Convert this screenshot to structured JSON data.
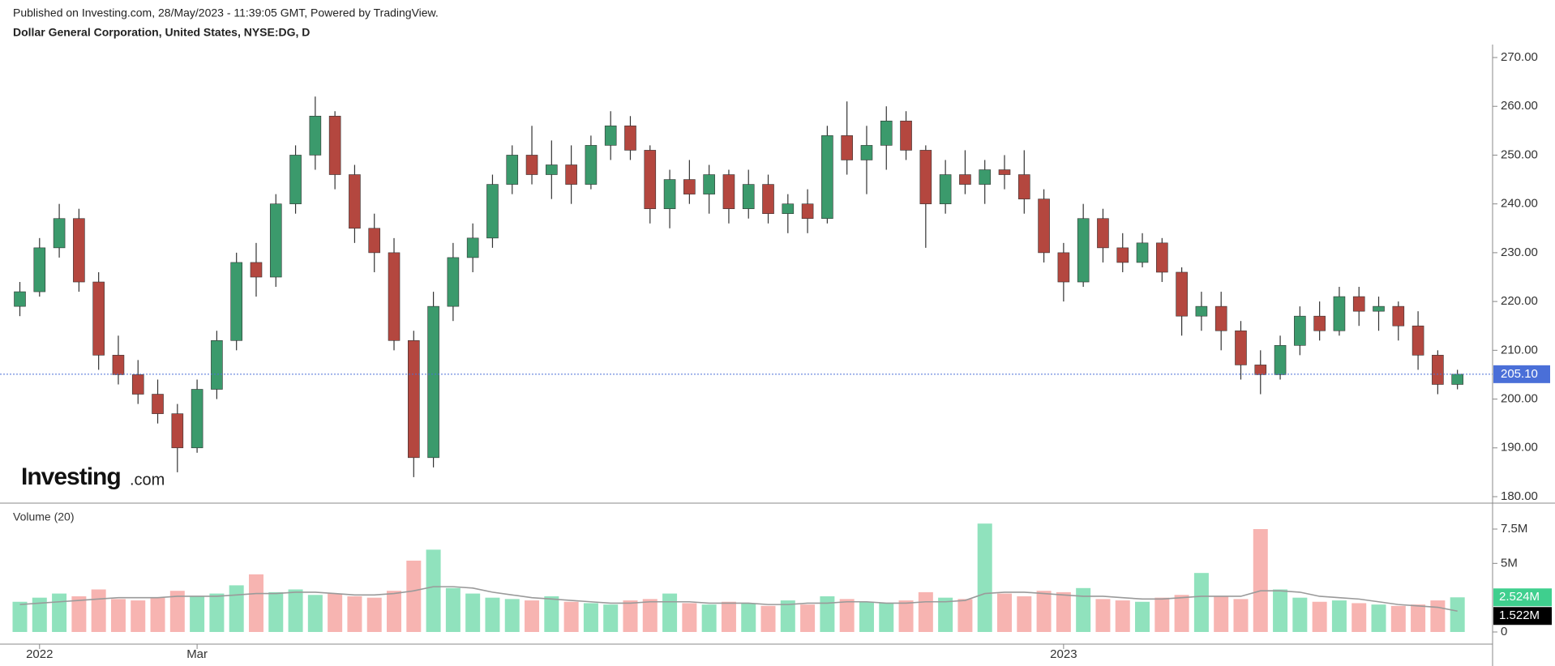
{
  "chart_data": {
    "type": "candlestick",
    "header": "Published on Investing.com, 28/May/2023 - 11:39:05 GMT, Powered by TradingView.",
    "title": "Dollar General Corporation, United States, NYSE:DG, D",
    "volume_title": "Volume (20)",
    "logo": {
      "brand": "Investing",
      "suffix": ".com"
    },
    "up_color": "#3b9a6c",
    "down_color": "#b4473f",
    "volume_up_color": "#90e2bd",
    "volume_down_color": "#f7b4b1",
    "volume_ma_color": "#9a9a9a",
    "categories": [
      null,
      "2022",
      null,
      null,
      null,
      null,
      null,
      null,
      null,
      "Mar",
      null,
      null,
      null,
      null,
      null,
      null,
      null,
      null,
      null,
      null,
      null,
      null,
      null,
      null,
      null,
      null,
      null,
      null,
      null,
      null,
      null,
      null,
      null,
      null,
      null,
      null,
      null,
      null,
      null,
      null,
      null,
      null,
      null,
      null,
      null,
      null,
      null,
      null,
      null,
      null,
      null,
      null,
      null,
      "2023",
      null,
      null,
      null,
      null,
      null,
      null,
      null,
      null,
      null,
      null,
      null,
      null,
      null,
      null,
      null,
      null,
      null,
      null,
      null,
      null
    ],
    "open": [
      219,
      222,
      231,
      237,
      224,
      209,
      205,
      201,
      197,
      190,
      202,
      212,
      228,
      225,
      240,
      250,
      258,
      246,
      235,
      230,
      212,
      188,
      219,
      229,
      233,
      244,
      250,
      246,
      248,
      244,
      252,
      256,
      251,
      239,
      245,
      242,
      246,
      239,
      244,
      238,
      240,
      237,
      254,
      249,
      252,
      257,
      251,
      240,
      246,
      244,
      247,
      246,
      241,
      230,
      224,
      237,
      231,
      228,
      232,
      226,
      217,
      219,
      214,
      207,
      205,
      211,
      217,
      214,
      221,
      218,
      219,
      215,
      209,
      203
    ],
    "high": [
      224,
      233,
      240,
      239,
      226,
      213,
      208,
      204,
      199,
      204,
      214,
      230,
      232,
      242,
      252,
      262,
      259,
      248,
      238,
      233,
      214,
      222,
      232,
      236,
      246,
      252,
      256,
      253,
      252,
      254,
      259,
      258,
      252,
      247,
      249,
      248,
      247,
      247,
      246,
      242,
      243,
      256,
      261,
      256,
      260,
      259,
      252,
      249,
      251,
      249,
      250,
      251,
      243,
      232,
      240,
      239,
      234,
      234,
      233,
      227,
      222,
      222,
      216,
      210,
      213,
      219,
      220,
      223,
      223,
      221,
      220,
      218,
      210,
      206
    ],
    "low": [
      217,
      221,
      229,
      222,
      206,
      203,
      199,
      195,
      185,
      189,
      200,
      210,
      221,
      223,
      238,
      247,
      243,
      232,
      226,
      210,
      184,
      186,
      216,
      226,
      231,
      242,
      244,
      241,
      240,
      243,
      249,
      249,
      236,
      235,
      240,
      238,
      236,
      237,
      236,
      234,
      234,
      236,
      246,
      242,
      247,
      249,
      231,
      238,
      242,
      240,
      243,
      238,
      228,
      220,
      223,
      228,
      226,
      227,
      224,
      213,
      214,
      210,
      204,
      201,
      204,
      209,
      212,
      213,
      215,
      214,
      212,
      206,
      201,
      202
    ],
    "close": [
      222,
      231,
      237,
      224,
      209,
      205,
      201,
      197,
      190,
      202,
      212,
      228,
      225,
      240,
      250,
      258,
      246,
      235,
      230,
      212,
      188,
      219,
      229,
      233,
      244,
      250,
      246,
      248,
      244,
      252,
      256,
      251,
      239,
      245,
      242,
      246,
      239,
      244,
      238,
      240,
      237,
      254,
      249,
      252,
      257,
      251,
      240,
      246,
      244,
      247,
      246,
      241,
      230,
      224,
      237,
      231,
      228,
      232,
      226,
      217,
      219,
      214,
      207,
      205,
      211,
      217,
      214,
      221,
      218,
      219,
      215,
      209,
      203,
      205.1
    ],
    "volume": [
      2.2,
      2.5,
      2.8,
      2.6,
      3.1,
      2.4,
      2.3,
      2.5,
      3.0,
      2.6,
      2.8,
      3.4,
      4.2,
      2.9,
      3.1,
      2.7,
      2.8,
      2.6,
      2.5,
      3.0,
      5.2,
      6.0,
      3.2,
      2.8,
      2.5,
      2.4,
      2.3,
      2.6,
      2.2,
      2.1,
      2.0,
      2.3,
      2.4,
      2.8,
      2.1,
      2.0,
      2.2,
      2.1,
      1.9,
      2.3,
      2.0,
      2.6,
      2.4,
      2.2,
      2.1,
      2.3,
      2.9,
      2.5,
      2.4,
      7.9,
      2.8,
      2.6,
      3.0,
      2.9,
      3.2,
      2.4,
      2.3,
      2.2,
      2.5,
      2.7,
      4.3,
      2.6,
      2.4,
      7.5,
      3.1,
      2.5,
      2.2,
      2.3,
      2.1,
      2.0,
      1.9,
      2.0,
      2.3,
      2.524
    ],
    "volume_ma": [
      2.0,
      2.1,
      2.2,
      2.3,
      2.4,
      2.5,
      2.5,
      2.5,
      2.6,
      2.6,
      2.6,
      2.7,
      2.8,
      2.8,
      2.9,
      2.9,
      2.8,
      2.7,
      2.7,
      2.8,
      3.0,
      3.3,
      3.3,
      3.2,
      2.9,
      2.7,
      2.5,
      2.4,
      2.3,
      2.2,
      2.1,
      2.1,
      2.2,
      2.2,
      2.2,
      2.1,
      2.1,
      2.1,
      2.0,
      2.0,
      2.1,
      2.1,
      2.2,
      2.2,
      2.1,
      2.1,
      2.2,
      2.2,
      2.3,
      2.8,
      2.9,
      2.9,
      2.8,
      2.7,
      2.6,
      2.6,
      2.5,
      2.4,
      2.4,
      2.5,
      2.6,
      2.6,
      2.6,
      3.0,
      3.0,
      2.9,
      2.6,
      2.5,
      2.4,
      2.2,
      2.0,
      1.9,
      1.8,
      1.522
    ],
    "ylim": [
      180,
      270
    ],
    "yticks": [
      {
        "value": 180,
        "label": "180.00"
      },
      {
        "value": 190,
        "label": "190.00"
      },
      {
        "value": 200,
        "label": "200.00"
      },
      {
        "value": 210,
        "label": "210.00"
      },
      {
        "value": 220,
        "label": "220.00"
      },
      {
        "value": 230,
        "label": "230.00"
      },
      {
        "value": 240,
        "label": "240.00"
      },
      {
        "value": 250,
        "label": "250.00"
      },
      {
        "value": 260,
        "label": "260.00"
      },
      {
        "value": 270,
        "label": "270.00"
      }
    ],
    "volume_lim": [
      0,
      9
    ],
    "volume_ticks": [
      0,
      {
        "value": 5,
        "label": "5M"
      },
      {
        "value": 7.5,
        "label": "7.5M"
      }
    ],
    "last_price": {
      "value": 205.1,
      "label": "205.10",
      "color": "#4a6fd8"
    },
    "volume_last": {
      "value": 2.524,
      "label": "2.524M",
      "color": "#3fcf8e"
    },
    "volume_ma_last": {
      "value": 1.522,
      "label": "1.522M",
      "color": "#000000"
    }
  }
}
